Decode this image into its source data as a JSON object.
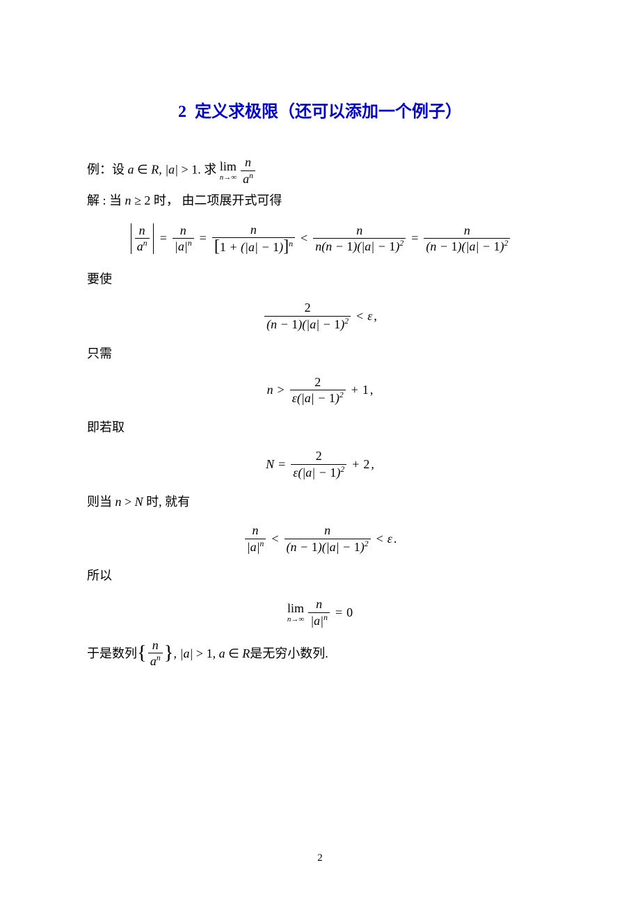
{
  "title": {
    "number": "2",
    "text": "定义求极限（还可以添加一个例子）",
    "color": "#0000cc"
  },
  "lines": {
    "example_prefix": "例：设",
    "example_cond": "a ∈ R, |a| > 1",
    "example_mid": ". 求",
    "solution_prefix": "解 : 当",
    "solution_cond": "n ≥ 2",
    "solution_suffix": "  时，  由二项展开式可得",
    "yaoshi": "要使",
    "zhixu": "只需",
    "jiruoqu": "即若取",
    "zedang_prefix": "则当",
    "zedang_cond": "n > N",
    "zedang_suffix": "时, 就有",
    "suoyi": "所以",
    "yushi_prefix": "于是数列",
    "yushi_cond": ", |a| > 1, a ∈ R",
    "yushi_suffix": "是无穷小数列."
  },
  "math": {
    "n": "n",
    "a": "a",
    "N": "N",
    "R": "R",
    "two": "2",
    "one": "1",
    "zero": "0",
    "eps": "ε",
    "lim": "lim",
    "lim_sub": "n→∞",
    "an": "a",
    "minus": "−",
    "plus": "+",
    "lt": "<",
    "gt": ">",
    "eq": "=",
    "in": "∈"
  },
  "page_number": "2",
  "style": {
    "title_fontsize": 24,
    "body_fontsize": 18,
    "text_color": "#000000",
    "background": "#ffffff"
  }
}
